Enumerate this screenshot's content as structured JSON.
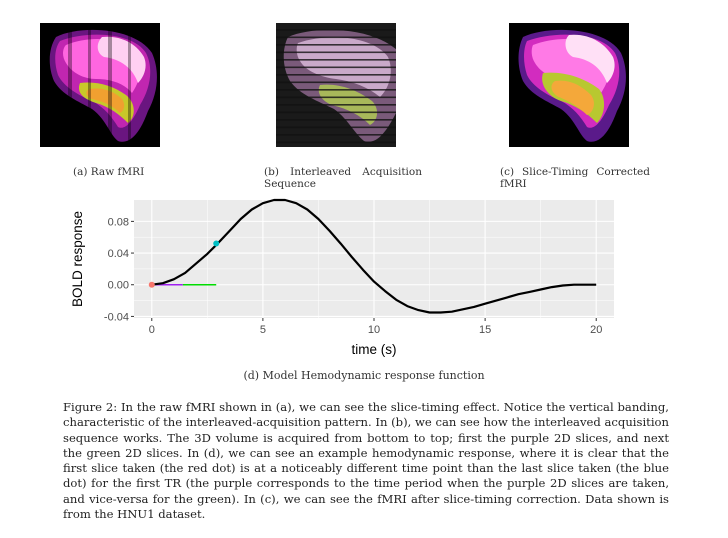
{
  "panels": [
    {
      "label": "(a) Raw fMRI"
    },
    {
      "label": "(b) Interleaved Acquisition Sequence"
    },
    {
      "label": "(c) Slice-Timing Corrected fMRI"
    }
  ],
  "plot_caption": "(d) Model Hemodynamic response function",
  "figure_caption": "Figure 2: In the raw fMRI shown in (a), we can see the slice-timing effect. Notice the vertical banding, characteristic of the interleaved-acquisition pattern. In (b), we can see how the interleaved acquisition sequence works. The 3D volume is acquired from bottom to top; first the purple 2D slices, and next the green 2D slices. In (d), we can see an example hemodynamic response, where it is clear that the first slice taken (the red dot) is at a noticeably different time point than the last slice taken (the blue dot) for the first TR (the purple corresponds to the time period when the purple 2D slices are taken, and vice-versa for the green). In (c), we can see the fMRI after slice-timing correction. Data shown is from the HNU1 dataset.",
  "colors": {
    "panel_bg": "#ebebeb",
    "grid": "#ffffff",
    "curve": "#000000",
    "red_dot": "#f8766d",
    "blue_dot": "#00bfc4",
    "purple_segment": "#a020f0",
    "green_segment": "#00dd00"
  },
  "chart_data": {
    "type": "line",
    "title": "",
    "xlabel": "time (s)",
    "ylabel": "BOLD response",
    "xlim": [
      -0.8,
      20.8
    ],
    "ylim": [
      -0.042,
      0.107
    ],
    "xticks": [
      0,
      5,
      10,
      15,
      20
    ],
    "xtick_labels": [
      "0",
      "5",
      "10",
      "15",
      "20"
    ],
    "yticks": [
      -0.04,
      0.0,
      0.04,
      0.08
    ],
    "ytick_labels": [
      "-0.04",
      "0.00",
      "0.04",
      "0.08"
    ],
    "grid": true,
    "series": [
      {
        "x": [
          0,
          0.5,
          1,
          1.5,
          2,
          2.5,
          3,
          3.5,
          4,
          4.5,
          5,
          5.5,
          6,
          6.5,
          7,
          7.5,
          8,
          8.5,
          9,
          9.5,
          10,
          10.5,
          11,
          11.5,
          12,
          12.5,
          13,
          13.5,
          14,
          14.5,
          15,
          15.5,
          16,
          16.5,
          17,
          17.5,
          18,
          18.5,
          19,
          19.5,
          20
        ],
        "y": [
          0.0,
          0.002,
          0.007,
          0.015,
          0.027,
          0.039,
          0.053,
          0.068,
          0.083,
          0.095,
          0.103,
          0.107,
          0.107,
          0.103,
          0.095,
          0.083,
          0.068,
          0.052,
          0.035,
          0.019,
          0.004,
          -0.008,
          -0.019,
          -0.027,
          -0.032,
          -0.035,
          -0.035,
          -0.034,
          -0.031,
          -0.028,
          -0.024,
          -0.02,
          -0.016,
          -0.012,
          -0.009,
          -0.006,
          -0.003,
          -0.001,
          0.0,
          0.0,
          0.0
        ]
      }
    ],
    "markers": [
      {
        "x": 0,
        "y": 0.0,
        "color": "red"
      },
      {
        "x": 2.9,
        "y": 0.052,
        "color": "blue"
      }
    ],
    "segments": [
      {
        "x0": 0,
        "x1": 1.4,
        "y": 0.0,
        "color": "purple"
      },
      {
        "x0": 1.4,
        "x1": 2.9,
        "y": 0.0,
        "color": "green"
      }
    ]
  }
}
